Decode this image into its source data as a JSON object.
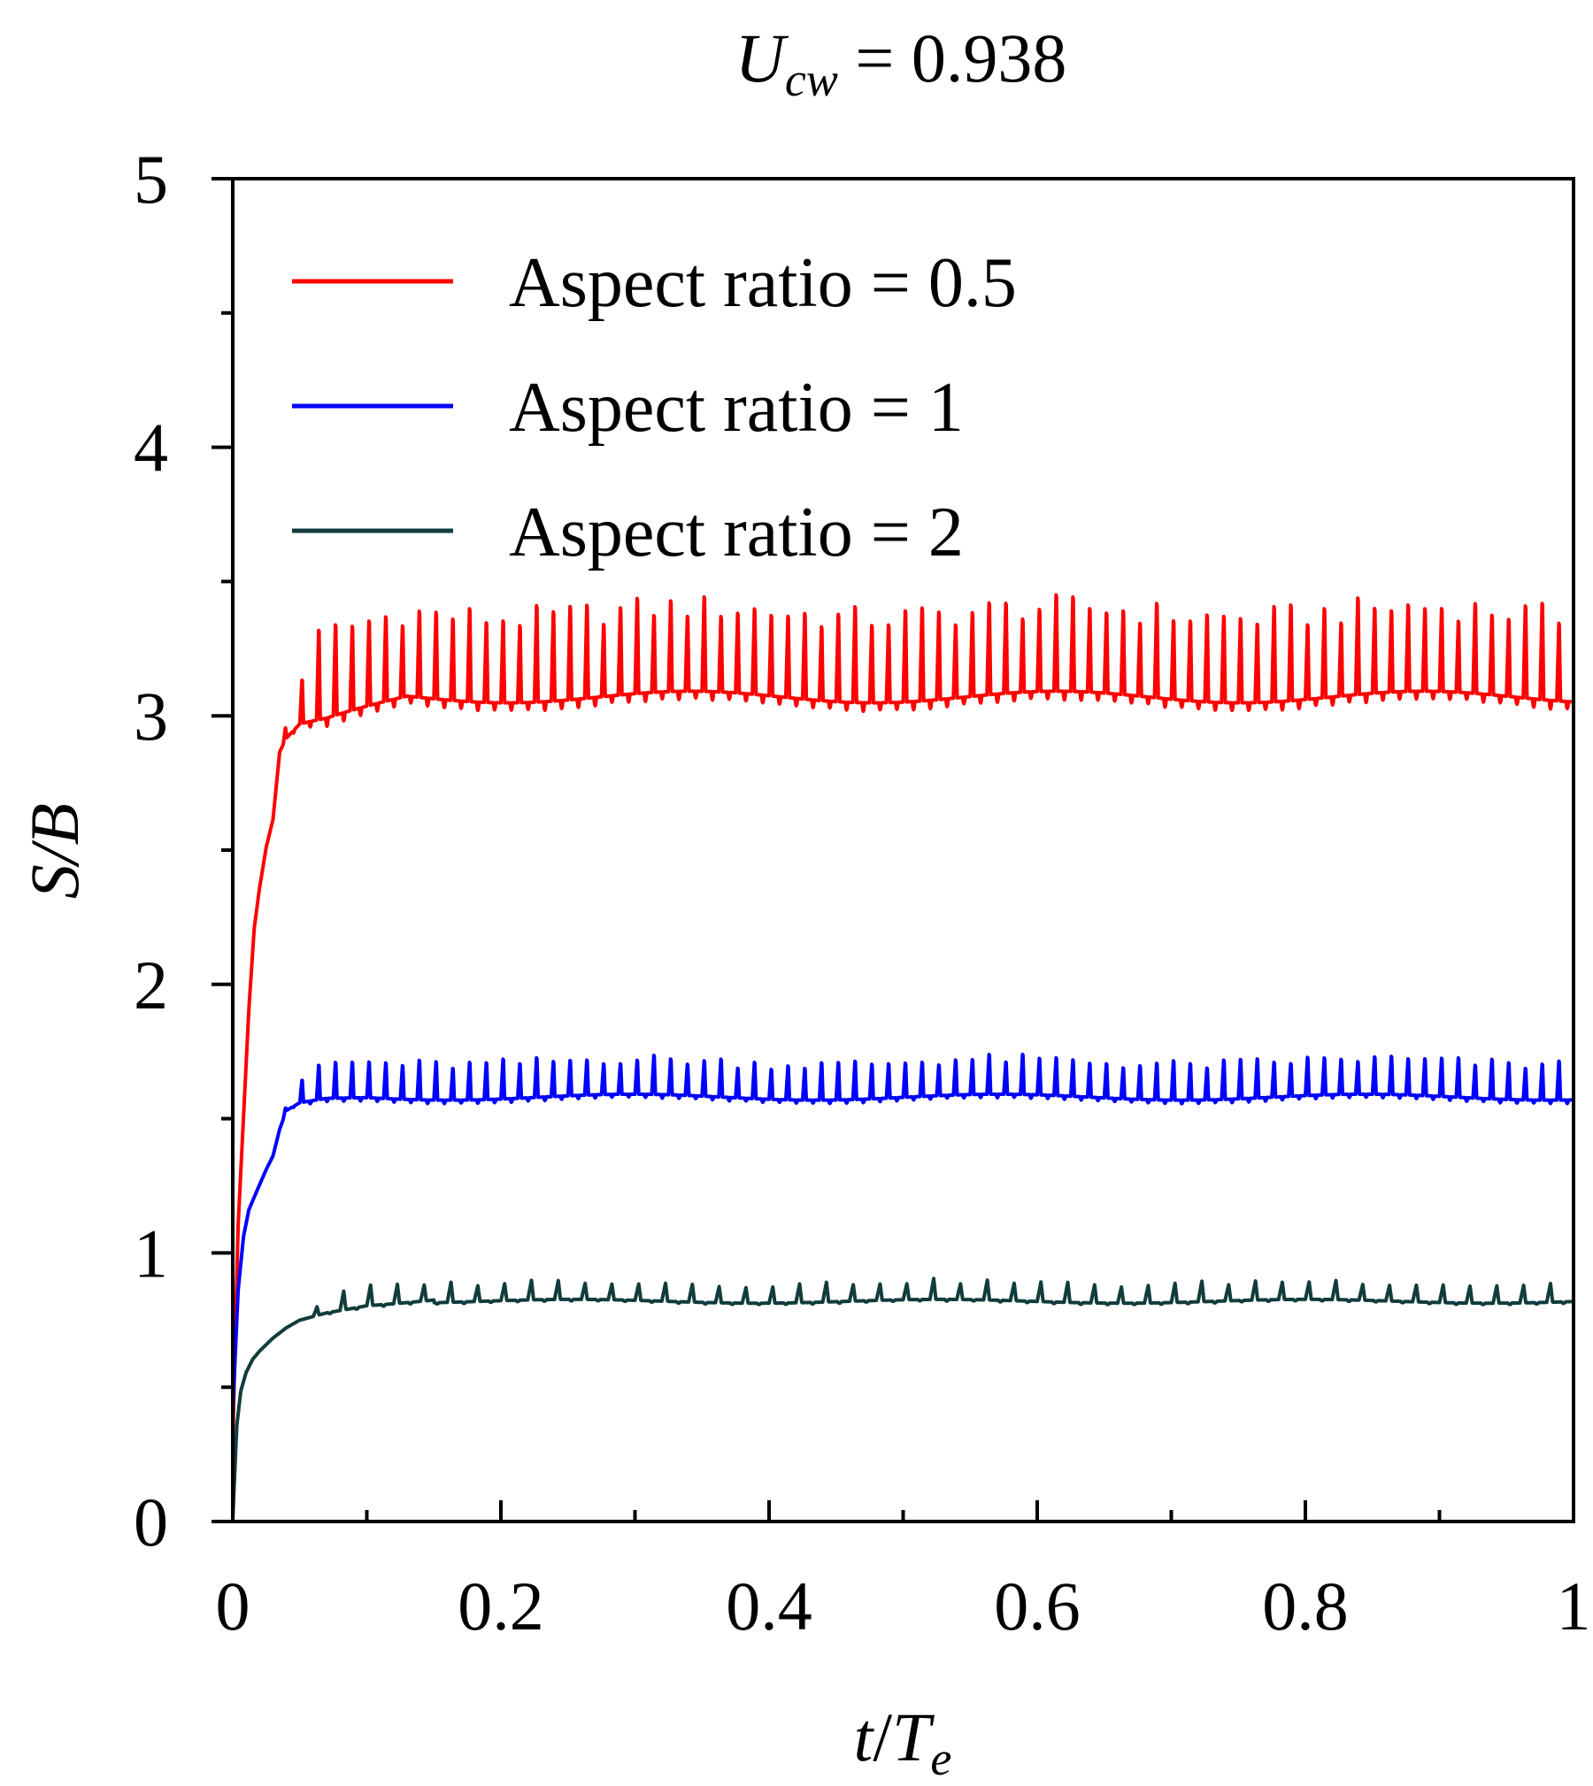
{
  "chart_data": {
    "type": "line",
    "title": {
      "var": "U",
      "sub": "cw",
      "rest": " = 0.938"
    },
    "xlabel": {
      "a": "t",
      "slash": "/",
      "b": "T",
      "sub": "e"
    },
    "ylabel": "S/B",
    "xlim": [
      0,
      1
    ],
    "ylim": [
      0,
      5
    ],
    "xticks": [
      0,
      0.2,
      0.4,
      0.6,
      0.8,
      1
    ],
    "xtick_labels": [
      "0",
      "0.2",
      "0.4",
      "0.6",
      "0.8",
      "1"
    ],
    "yticks": [
      0,
      1,
      2,
      3,
      4,
      5
    ],
    "ytick_labels": [
      "0",
      "1",
      "2",
      "3",
      "4",
      "5"
    ],
    "legend_position": "top-left",
    "grid": false,
    "series": [
      {
        "name": "Aspect ratio = 0.5",
        "color": "#ff0000",
        "oscillation_cycles": 80,
        "osc_start": 0.035,
        "oscillation": {
          "base": 3.07,
          "peak": 3.43
        },
        "rise": [
          [
            0,
            0.3
          ],
          [
            0.004,
            1.1
          ],
          [
            0.008,
            1.5
          ],
          [
            0.012,
            1.9
          ],
          [
            0.016,
            2.2
          ],
          [
            0.02,
            2.35
          ],
          [
            0.025,
            2.5
          ],
          [
            0.03,
            2.6
          ],
          [
            0.033,
            2.75
          ],
          [
            0.035,
            2.85
          ],
          [
            0.04,
            2.9
          ],
          [
            0.05,
            2.95
          ],
          [
            0.07,
            2.97
          ],
          [
            0.1,
            3.02
          ],
          [
            0.13,
            3.07
          ]
        ]
      },
      {
        "name": "Aspect ratio = 1",
        "color": "#0000ff",
        "oscillation_cycles": 80,
        "osc_start": 0.035,
        "oscillation": {
          "base": 1.58,
          "peak": 1.73
        },
        "rise": [
          [
            0,
            0.4
          ],
          [
            0.004,
            0.85
          ],
          [
            0.008,
            1.05
          ],
          [
            0.012,
            1.15
          ],
          [
            0.018,
            1.22
          ],
          [
            0.025,
            1.3
          ],
          [
            0.03,
            1.35
          ],
          [
            0.035,
            1.45
          ],
          [
            0.04,
            1.52
          ],
          [
            0.05,
            1.55
          ],
          [
            0.07,
            1.57
          ],
          [
            0.1,
            1.58
          ]
        ]
      },
      {
        "name": "Aspect ratio = 2",
        "color": "#113c3c",
        "oscillation_cycles": 50,
        "osc_start": 0.05,
        "oscillation": {
          "base": 0.82,
          "peak": 0.89
        },
        "rise": [
          [
            0,
            0.0
          ],
          [
            0.003,
            0.35
          ],
          [
            0.006,
            0.48
          ],
          [
            0.01,
            0.55
          ],
          [
            0.015,
            0.6
          ],
          [
            0.02,
            0.63
          ],
          [
            0.03,
            0.68
          ],
          [
            0.04,
            0.72
          ],
          [
            0.05,
            0.75
          ],
          [
            0.07,
            0.78
          ],
          [
            0.1,
            0.81
          ],
          [
            0.15,
            0.83
          ]
        ]
      }
    ]
  }
}
